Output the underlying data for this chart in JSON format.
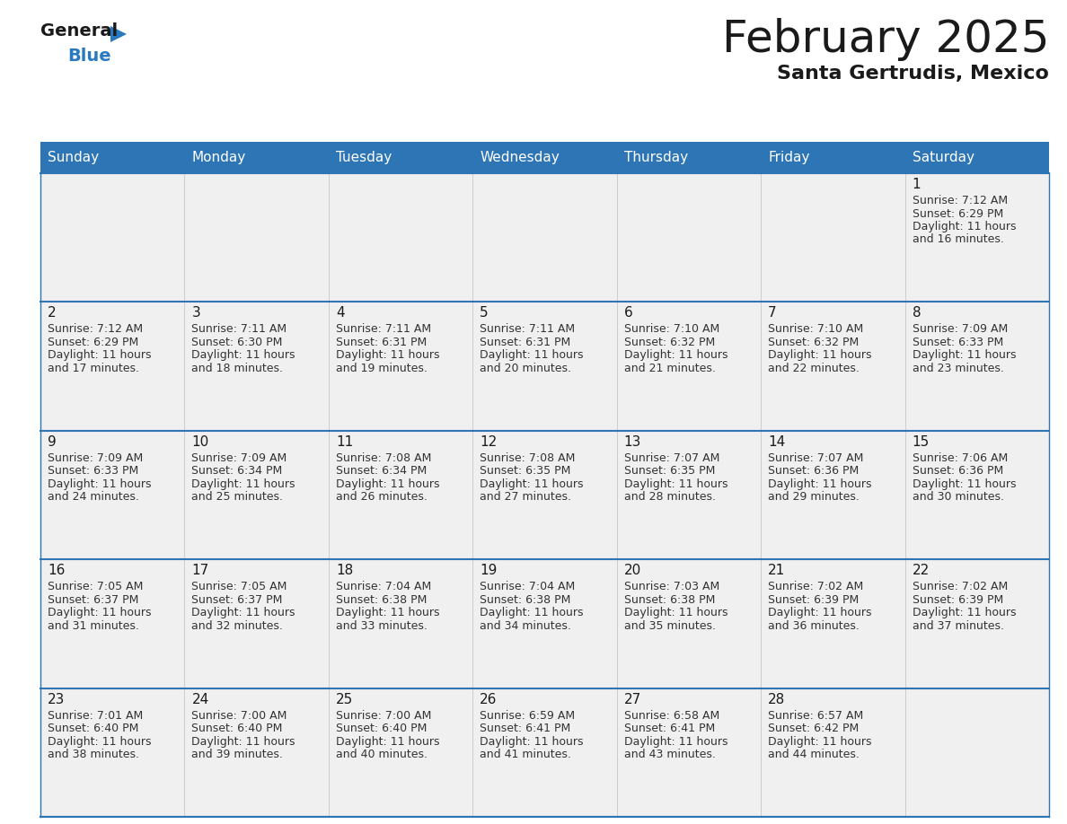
{
  "title": "February 2025",
  "subtitle": "Santa Gertrudis, Mexico",
  "header_color": "#2e75b6",
  "header_text_color": "#ffffff",
  "cell_bg_color": "#f0f0f0",
  "border_color": "#2e75b6",
  "day_names": [
    "Sunday",
    "Monday",
    "Tuesday",
    "Wednesday",
    "Thursday",
    "Friday",
    "Saturday"
  ],
  "weeks": [
    [
      {
        "day": null,
        "info": null
      },
      {
        "day": null,
        "info": null
      },
      {
        "day": null,
        "info": null
      },
      {
        "day": null,
        "info": null
      },
      {
        "day": null,
        "info": null
      },
      {
        "day": null,
        "info": null
      },
      {
        "day": 1,
        "info": "Sunrise: 7:12 AM\nSunset: 6:29 PM\nDaylight: 11 hours\nand 16 minutes."
      }
    ],
    [
      {
        "day": 2,
        "info": "Sunrise: 7:12 AM\nSunset: 6:29 PM\nDaylight: 11 hours\nand 17 minutes."
      },
      {
        "day": 3,
        "info": "Sunrise: 7:11 AM\nSunset: 6:30 PM\nDaylight: 11 hours\nand 18 minutes."
      },
      {
        "day": 4,
        "info": "Sunrise: 7:11 AM\nSunset: 6:31 PM\nDaylight: 11 hours\nand 19 minutes."
      },
      {
        "day": 5,
        "info": "Sunrise: 7:11 AM\nSunset: 6:31 PM\nDaylight: 11 hours\nand 20 minutes."
      },
      {
        "day": 6,
        "info": "Sunrise: 7:10 AM\nSunset: 6:32 PM\nDaylight: 11 hours\nand 21 minutes."
      },
      {
        "day": 7,
        "info": "Sunrise: 7:10 AM\nSunset: 6:32 PM\nDaylight: 11 hours\nand 22 minutes."
      },
      {
        "day": 8,
        "info": "Sunrise: 7:09 AM\nSunset: 6:33 PM\nDaylight: 11 hours\nand 23 minutes."
      }
    ],
    [
      {
        "day": 9,
        "info": "Sunrise: 7:09 AM\nSunset: 6:33 PM\nDaylight: 11 hours\nand 24 minutes."
      },
      {
        "day": 10,
        "info": "Sunrise: 7:09 AM\nSunset: 6:34 PM\nDaylight: 11 hours\nand 25 minutes."
      },
      {
        "day": 11,
        "info": "Sunrise: 7:08 AM\nSunset: 6:34 PM\nDaylight: 11 hours\nand 26 minutes."
      },
      {
        "day": 12,
        "info": "Sunrise: 7:08 AM\nSunset: 6:35 PM\nDaylight: 11 hours\nand 27 minutes."
      },
      {
        "day": 13,
        "info": "Sunrise: 7:07 AM\nSunset: 6:35 PM\nDaylight: 11 hours\nand 28 minutes."
      },
      {
        "day": 14,
        "info": "Sunrise: 7:07 AM\nSunset: 6:36 PM\nDaylight: 11 hours\nand 29 minutes."
      },
      {
        "day": 15,
        "info": "Sunrise: 7:06 AM\nSunset: 6:36 PM\nDaylight: 11 hours\nand 30 minutes."
      }
    ],
    [
      {
        "day": 16,
        "info": "Sunrise: 7:05 AM\nSunset: 6:37 PM\nDaylight: 11 hours\nand 31 minutes."
      },
      {
        "day": 17,
        "info": "Sunrise: 7:05 AM\nSunset: 6:37 PM\nDaylight: 11 hours\nand 32 minutes."
      },
      {
        "day": 18,
        "info": "Sunrise: 7:04 AM\nSunset: 6:38 PM\nDaylight: 11 hours\nand 33 minutes."
      },
      {
        "day": 19,
        "info": "Sunrise: 7:04 AM\nSunset: 6:38 PM\nDaylight: 11 hours\nand 34 minutes."
      },
      {
        "day": 20,
        "info": "Sunrise: 7:03 AM\nSunset: 6:38 PM\nDaylight: 11 hours\nand 35 minutes."
      },
      {
        "day": 21,
        "info": "Sunrise: 7:02 AM\nSunset: 6:39 PM\nDaylight: 11 hours\nand 36 minutes."
      },
      {
        "day": 22,
        "info": "Sunrise: 7:02 AM\nSunset: 6:39 PM\nDaylight: 11 hours\nand 37 minutes."
      }
    ],
    [
      {
        "day": 23,
        "info": "Sunrise: 7:01 AM\nSunset: 6:40 PM\nDaylight: 11 hours\nand 38 minutes."
      },
      {
        "day": 24,
        "info": "Sunrise: 7:00 AM\nSunset: 6:40 PM\nDaylight: 11 hours\nand 39 minutes."
      },
      {
        "day": 25,
        "info": "Sunrise: 7:00 AM\nSunset: 6:40 PM\nDaylight: 11 hours\nand 40 minutes."
      },
      {
        "day": 26,
        "info": "Sunrise: 6:59 AM\nSunset: 6:41 PM\nDaylight: 11 hours\nand 41 minutes."
      },
      {
        "day": 27,
        "info": "Sunrise: 6:58 AM\nSunset: 6:41 PM\nDaylight: 11 hours\nand 43 minutes."
      },
      {
        "day": 28,
        "info": "Sunrise: 6:57 AM\nSunset: 6:42 PM\nDaylight: 11 hours\nand 44 minutes."
      },
      {
        "day": null,
        "info": null
      }
    ]
  ],
  "logo_general_color": "#1a1a1a",
  "logo_blue_color": "#2979c0",
  "logo_triangle_color": "#2979c0",
  "title_fontsize": 36,
  "subtitle_fontsize": 16,
  "dayname_fontsize": 11,
  "daynum_fontsize": 11,
  "info_fontsize": 9
}
